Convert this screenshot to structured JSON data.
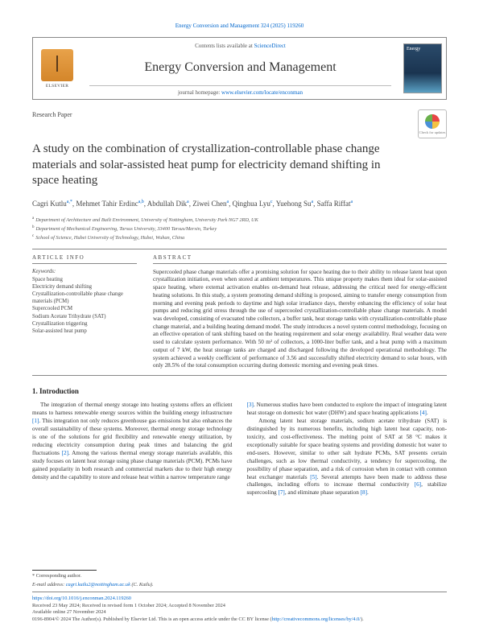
{
  "citation": "Energy Conversion and Management 324 (2025) 119260",
  "contents_prefix": "Contents lists available at ",
  "sciencedirect": "ScienceDirect",
  "journal_name": "Energy Conversion and Management",
  "homepage_prefix": "journal homepage: ",
  "homepage_url": "www.elsevier.com/locate/enconman",
  "elsevier_label": "ELSEVIER",
  "cover_text": "Energy",
  "article_type": "Research Paper",
  "crossmark_label": "Check for updates",
  "title": "A study on the combination of crystallization-controllable phase change materials and solar-assisted heat pump for electricity demand shifting in space heating",
  "authors_html": "Cagri Kutlu<span class='sup'>a,*</span>, Mehmet Tahir Erdinc<span class='sup'>a,b</span>, Abdullah Dik<span class='sup'>a</span>, Ziwei Chen<span class='sup'>a</span>, Qinghua Lyu<span class='sup'>c</span>, Yuehong Su<span class='sup'>a</span>, Saffa Riffat<span class='sup'>a</span>",
  "affiliations": [
    "Department of Architecture and Built Environment, University of Nottingham, University Park NG7 2RD, UK",
    "Department of Mechanical Engineering, Tarsus University, 33400 Tarsus/Mersin, Turkey",
    "School of Science, Hubei University of Technology, Hubei, Wuhan, China"
  ],
  "aff_marks": [
    "a",
    "b",
    "c"
  ],
  "article_info_head": "ARTICLE INFO",
  "abstract_head": "ABSTRACT",
  "keywords_label": "Keywords:",
  "keywords": [
    "Space heating",
    "Electricity demand shifting",
    "Crystallization-controllable phase change materials (PCM)",
    "Supercooled PCM",
    "Sodium Acetate Trihydrate (SAT)",
    "Crystallization triggering",
    "Solar-assisted heat pump"
  ],
  "abstract": "Supercooled phase change materials offer a promising solution for space heating due to their ability to release latent heat upon crystallization initiation, even when stored at ambient temperatures. This unique property makes them ideal for solar-assisted space heating, where external activation enables on-demand heat release, addressing the critical need for energy-efficient heating solutions. In this study, a system promoting demand shifting is proposed, aiming to transfer energy consumption from morning and evening peak periods to daytime and high solar irradiance days, thereby enhancing the efficiency of solar heat pumps and reducing grid stress through the use of supercooled crystallization-controllable phase change materials. A model was developed, consisting of evacuated tube collectors, a buffer tank, heat storage tanks with crystallization-controllable phase change material, and a building heating demand model. The study introduces a novel system control methodology, focusing on an effective operation of tank shifting based on the heating requirement and solar energy availability. Real weather data were used to calculate system performance. With 50 m² of collectors, a 1000-liter buffer tank, and a heat pump with a maximum output of 7 kW, the heat storage tanks are charged and discharged following the developed operational methodology. The system achieved a weekly coefficient of performance of 3.56 and successfully shifted electricity demand to solar hours, with only 28.5% of the total consumption occurring during domestic morning and evening peak times.",
  "intro_head": "1. Introduction",
  "intro_left": "The integration of thermal energy storage into heating systems offers an efficient means to harness renewable energy sources within the building energy infrastructure <span class='cite'>[1]</span>. This integration not only reduces greenhouse gas emissions but also enhances the overall sustainability of these systems. Moreover, thermal energy storage technology is one of the solutions for grid flexibility and renewable energy utilization, by reducing electricity consumption during peak times and balancing the grid fluctuations <span class='cite'>[2]</span>. Among the various thermal energy storage materials available, this study focuses on latent heat storage using phase change materials (PCM). PCMs have gained popularity in both research and commercial markets due to their high energy density and the capability to store and release heat within a narrow temperature range",
  "intro_right": "<span class='cite'>[3]</span>. Numerous studies have been conducted to explore the impact of integrating latent heat storage on domestic hot water (DHW) and space heating applications <span class='cite'>[4]</span>.<br>&nbsp;&nbsp;&nbsp;Among latent heat storage materials, sodium acetate trihydrate (SAT) is distinguished by its numerous benefits, including high latent heat capacity, non-toxicity, and cost-effectiveness. The melting point of SAT at 58 °C makes it exceptionally suitable for space heating systems and providing domestic hot water to end-users. However, similar to other salt hydrate PCMs, SAT presents certain challenges, such as low thermal conductivity, a tendency for supercooling, the possibility of phase separation, and a risk of corrosion when in contact with common heat exchanger materials <span class='cite'>[5]</span>. Several attempts have been made to address these challenges, including efforts to increase thermal conductivity <span class='cite'>[6]</span>, stabilize supercooling <span class='cite'>[7]</span>, and eliminate phase separation <span class='cite'>[8]</span>.",
  "corresp_mark": "* Corresponding author.",
  "email_label": "E-mail address: ",
  "email": "cagri.kutlu2@nottingham.ac.uk",
  "email_paren": " (C. Kutlu).",
  "doi": "https://doi.org/10.1016/j.enconman.2024.119260",
  "history": "Received 23 May 2024; Received in revised form 1 October 2024; Accepted 8 November 2024",
  "available": "Available online 27 November 2024",
  "copyright_prefix": "0196-8904/© 2024 The Author(s). Published by Elsevier Ltd. This is an open access article under the CC BY license (",
  "cc_url": "http://creativecommons.org/licenses/by/4.0/",
  "copyright_suffix": ")."
}
